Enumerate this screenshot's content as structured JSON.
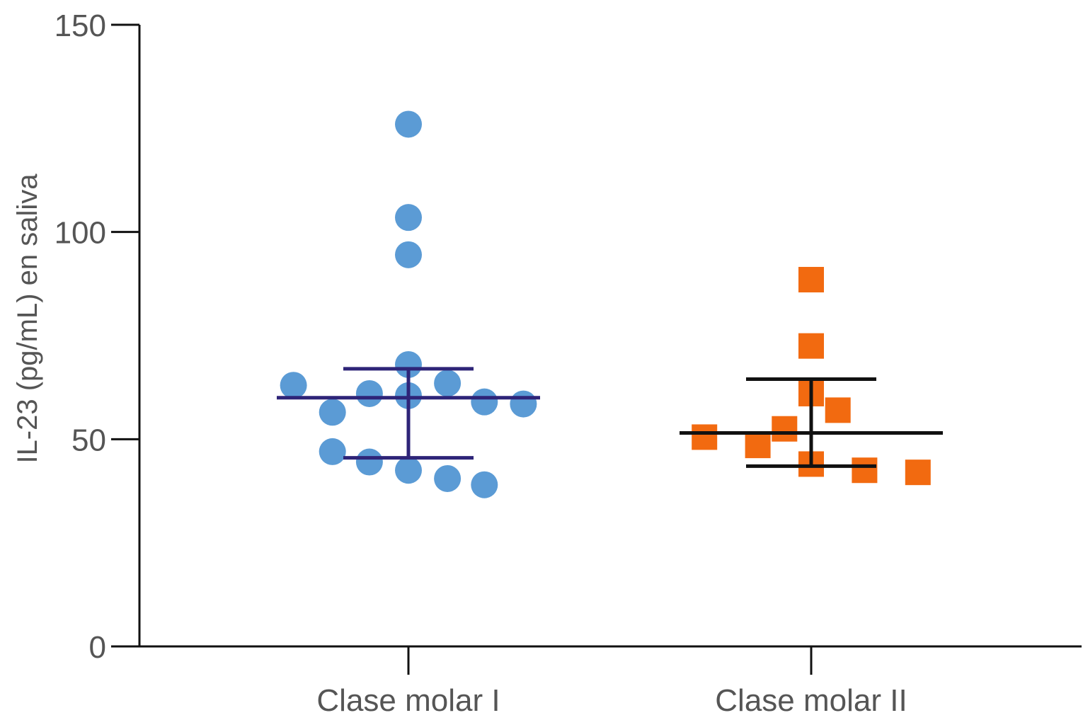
{
  "chart_data": {
    "type": "scatter",
    "ylabel": "IL-23 (pg/mL) en saliva",
    "xlabel": "",
    "ylim": [
      0,
      150
    ],
    "yticks": [
      0,
      50,
      100,
      150
    ],
    "categories": [
      "Clase molar I",
      "Clase molar II"
    ],
    "grid": false,
    "series": [
      {
        "category": "Clase molar I",
        "marker": "circle",
        "color": "#5B9BD5",
        "error_color": "#2E2478",
        "points": [
          {
            "offset": 0.0,
            "y": 126
          },
          {
            "offset": 0.0,
            "y": 103.5
          },
          {
            "offset": 0.0,
            "y": 94.5
          },
          {
            "offset": 0.0,
            "y": 68
          },
          {
            "offset": 0.0,
            "y": 60.5
          },
          {
            "offset": 0.0,
            "y": 42.5
          },
          {
            "offset": -0.56,
            "y": 63
          },
          {
            "offset": -0.37,
            "y": 56.5
          },
          {
            "offset": -0.37,
            "y": 47
          },
          {
            "offset": -0.19,
            "y": 61
          },
          {
            "offset": -0.19,
            "y": 44.5
          },
          {
            "offset": 0.19,
            "y": 63.5
          },
          {
            "offset": 0.19,
            "y": 40.5
          },
          {
            "offset": 0.37,
            "y": 59
          },
          {
            "offset": 0.37,
            "y": 39
          },
          {
            "offset": 0.56,
            "y": 58.5
          }
        ],
        "median": 60,
        "q1": 45.5,
        "q3": 67
      },
      {
        "category": "Clase molar II",
        "marker": "square",
        "color": "#F26A10",
        "error_color": "#111111",
        "points": [
          {
            "offset": 0.0,
            "y": 88.5
          },
          {
            "offset": 0.0,
            "y": 72.5
          },
          {
            "offset": 0.0,
            "y": 61
          },
          {
            "offset": 0.0,
            "y": 44
          },
          {
            "offset": 0.13,
            "y": 57
          },
          {
            "offset": -0.13,
            "y": 52.5
          },
          {
            "offset": -0.26,
            "y": 48.5
          },
          {
            "offset": -0.52,
            "y": 50.5
          },
          {
            "offset": 0.26,
            "y": 42.5
          },
          {
            "offset": 0.52,
            "y": 42
          }
        ],
        "median": 51.5,
        "q1": 43.5,
        "q3": 64.5
      }
    ]
  }
}
